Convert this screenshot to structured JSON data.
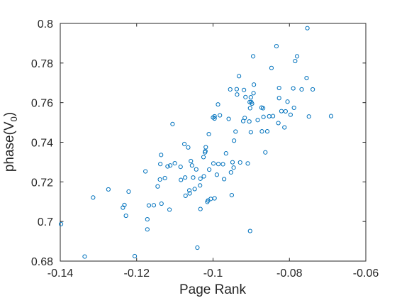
{
  "chart_data": {
    "type": "scatter",
    "title": "",
    "xlabel": "Page Rank",
    "ylabel": {
      "base": "phase(V",
      "sub": "0",
      "end": ")"
    },
    "xlim": [
      -0.14,
      -0.06
    ],
    "ylim": [
      0.68,
      0.8
    ],
    "xticks": [
      -0.14,
      -0.12,
      -0.1,
      -0.08,
      -0.06
    ],
    "xtick_labels": [
      "-0.14",
      "-0.12",
      "-0.1",
      "-0.08",
      "-0.06"
    ],
    "yticks": [
      0.68,
      0.7,
      0.72,
      0.74,
      0.76,
      0.78,
      0.8
    ],
    "ytick_labels": [
      "0.68",
      "0.7",
      "0.72",
      "0.74",
      "0.76",
      "0.78",
      "0.8"
    ],
    "grid": false,
    "legend": "none",
    "marker_color": "#0072BD",
    "series": [
      {
        "x": [
          -0.1398,
          -0.1336,
          -0.1314,
          -0.1274,
          -0.1236,
          -0.1232,
          -0.1228,
          -0.1221,
          -0.1205,
          -0.1177,
          -0.1172,
          -0.1172,
          -0.1168,
          -0.1155,
          -0.1145,
          -0.1139,
          -0.1138,
          -0.1136,
          -0.1135,
          -0.1126,
          -0.1119,
          -0.1114,
          -0.1112,
          -0.1106,
          -0.11,
          -0.1085,
          -0.1084,
          -0.1075,
          -0.1073,
          -0.1072,
          -0.1065,
          -0.1062,
          -0.1061,
          -0.1058,
          -0.1055,
          -0.1052,
          -0.1048,
          -0.1044,
          -0.1041,
          -0.1034,
          -0.1033,
          -0.1033,
          -0.1025,
          -0.1024,
          -0.1021,
          -0.102,
          -0.1019,
          -0.1015,
          -0.1013,
          -0.1011,
          -0.101,
          -0.1006,
          -0.1,
          -0.0999,
          -0.0996,
          -0.0996,
          -0.0996,
          -0.099,
          -0.0987,
          -0.0986,
          -0.0982,
          -0.0974,
          -0.0971,
          -0.0966,
          -0.0959,
          -0.0955,
          -0.0953,
          -0.0951,
          -0.0949,
          -0.0946,
          -0.0945,
          -0.0941,
          -0.0938,
          -0.0937,
          -0.0932,
          -0.0929,
          -0.0921,
          -0.0919,
          -0.0917,
          -0.0915,
          -0.0909,
          -0.0905,
          -0.0904,
          -0.0903,
          -0.0903,
          -0.0901,
          -0.0901,
          -0.09,
          -0.0898,
          -0.0895,
          -0.0894,
          -0.0893,
          -0.0883,
          -0.0873,
          -0.0872,
          -0.0869,
          -0.0868,
          -0.0863,
          -0.0858,
          -0.0853,
          -0.0847,
          -0.0843,
          -0.0834,
          -0.0829,
          -0.0827,
          -0.0827,
          -0.0821,
          -0.0813,
          -0.081,
          -0.0805,
          -0.0797,
          -0.079,
          -0.0788,
          -0.0785,
          -0.078,
          -0.0768,
          -0.0755,
          -0.0753,
          -0.0749,
          -0.0739,
          -0.0691
        ],
        "y": [
          0.6987,
          0.6823,
          0.7121,
          0.7162,
          0.707,
          0.7083,
          0.7029,
          0.7151,
          0.6825,
          0.7253,
          0.696,
          0.7011,
          0.7081,
          0.7082,
          0.7177,
          0.7212,
          0.729,
          0.7336,
          0.709,
          0.7219,
          0.7278,
          0.706,
          0.7283,
          0.7492,
          0.7294,
          0.7276,
          0.721,
          0.7391,
          0.7222,
          0.713,
          0.7374,
          0.7157,
          0.7142,
          0.7305,
          0.7283,
          0.7222,
          0.7164,
          0.7263,
          0.6868,
          0.7182,
          0.7216,
          0.7063,
          0.7325,
          0.7228,
          0.7349,
          0.7355,
          0.7375,
          0.7099,
          0.7106,
          0.7441,
          0.7262,
          0.7114,
          0.7525,
          0.7293,
          0.7117,
          0.752,
          0.7531,
          0.7236,
          0.7591,
          0.729,
          0.7536,
          0.7289,
          0.7214,
          0.7344,
          0.7518,
          0.7667,
          0.7248,
          0.7133,
          0.7299,
          0.7272,
          0.7408,
          0.7454,
          0.7668,
          0.7641,
          0.7734,
          0.7298,
          0.7507,
          0.7664,
          0.7523,
          0.7628,
          0.7293,
          0.7505,
          0.7603,
          0.6952,
          0.7572,
          0.7451,
          0.7627,
          0.7603,
          0.7595,
          0.7834,
          0.7648,
          0.7691,
          0.7512,
          0.7575,
          0.7455,
          0.7572,
          0.7528,
          0.7349,
          0.7455,
          0.7531,
          0.7775,
          0.7532,
          0.7885,
          0.7497,
          0.7674,
          0.7623,
          0.7557,
          0.7475,
          0.7556,
          0.7605,
          0.7539,
          0.7672,
          0.7574,
          0.781,
          0.7834,
          0.7667,
          0.7724,
          0.7976,
          0.753,
          0.7667,
          0.7532
        ]
      }
    ]
  }
}
